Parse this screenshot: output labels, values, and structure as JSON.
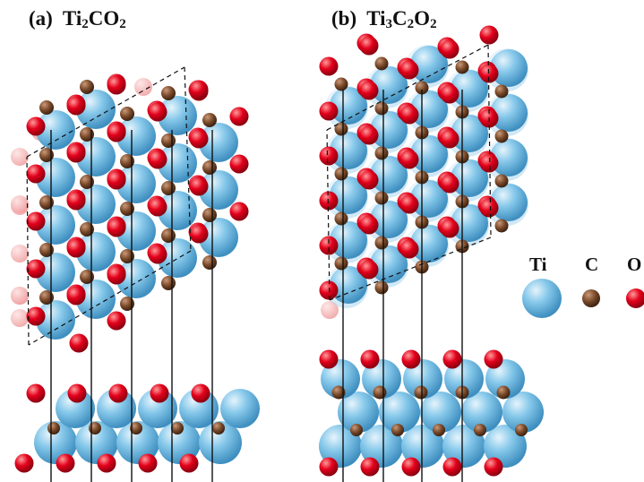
{
  "panels": [
    {
      "tag": "(a)",
      "formula_parts": [
        "Ti",
        "2",
        "CO",
        "2"
      ]
    },
    {
      "tag": "(b)",
      "formula_parts": [
        "Ti",
        "3",
        "C",
        "2",
        "O",
        "2"
      ]
    }
  ],
  "legend": [
    {
      "label": "Ti",
      "color": "#7ec3e8"
    },
    {
      "label": "C",
      "color": "#7a4a2a"
    },
    {
      "label": "O",
      "color": "#e3001b"
    }
  ],
  "colors": {
    "ti": "#7ec3e8",
    "c": "#7a4a2a",
    "o": "#e3001b",
    "ghost": "#f2a3a3",
    "line": "#111111"
  }
}
